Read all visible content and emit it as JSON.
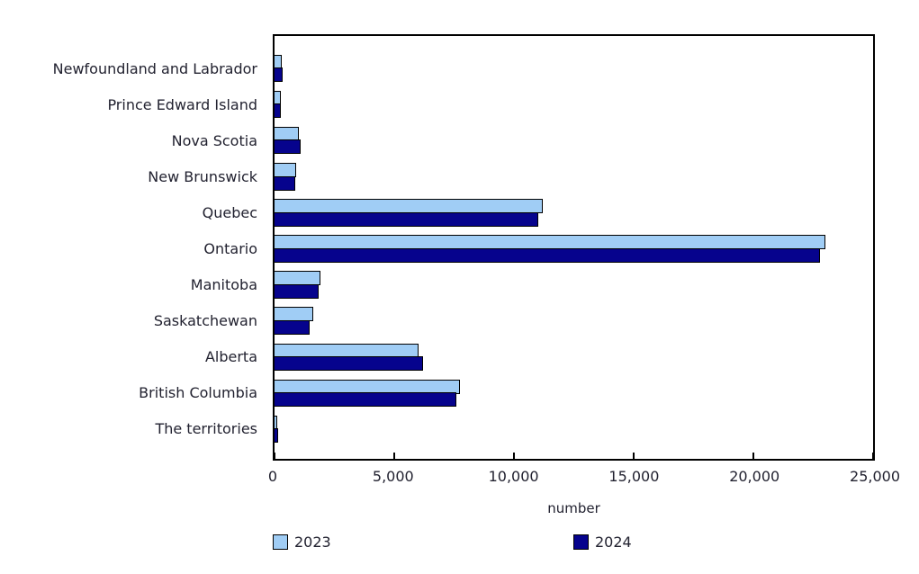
{
  "chart_data": {
    "type": "bar",
    "orientation": "horizontal",
    "title": "",
    "xlabel": "number",
    "xlim": [
      0,
      25000
    ],
    "xticks": [
      0,
      5000,
      10000,
      15000,
      20000,
      25000
    ],
    "xtick_labels": [
      "0",
      "5,000",
      "10,000",
      "15,000",
      "20,000",
      "25,000"
    ],
    "categories": [
      "Newfoundland and Labrador",
      "Prince Edward Island",
      "Nova Scotia",
      "New Brunswick",
      "Quebec",
      "Ontario",
      "Manitoba",
      "Saskatchewan",
      "Alberta",
      "British Columbia",
      "The territories"
    ],
    "series": [
      {
        "name": "2023",
        "color": "#A0CDF5",
        "border_color": "#000000",
        "values": [
          300,
          250,
          1000,
          890,
          11200,
          23000,
          1900,
          1620,
          6000,
          7750,
          100
        ]
      },
      {
        "name": "2024",
        "color": "#06038D",
        "border_color": "#000000",
        "values": [
          340,
          270,
          1090,
          870,
          11000,
          22800,
          1840,
          1450,
          6200,
          7600,
          150
        ]
      }
    ],
    "legend_position": "bottom",
    "grid": false,
    "background": "#FFFFFF"
  }
}
